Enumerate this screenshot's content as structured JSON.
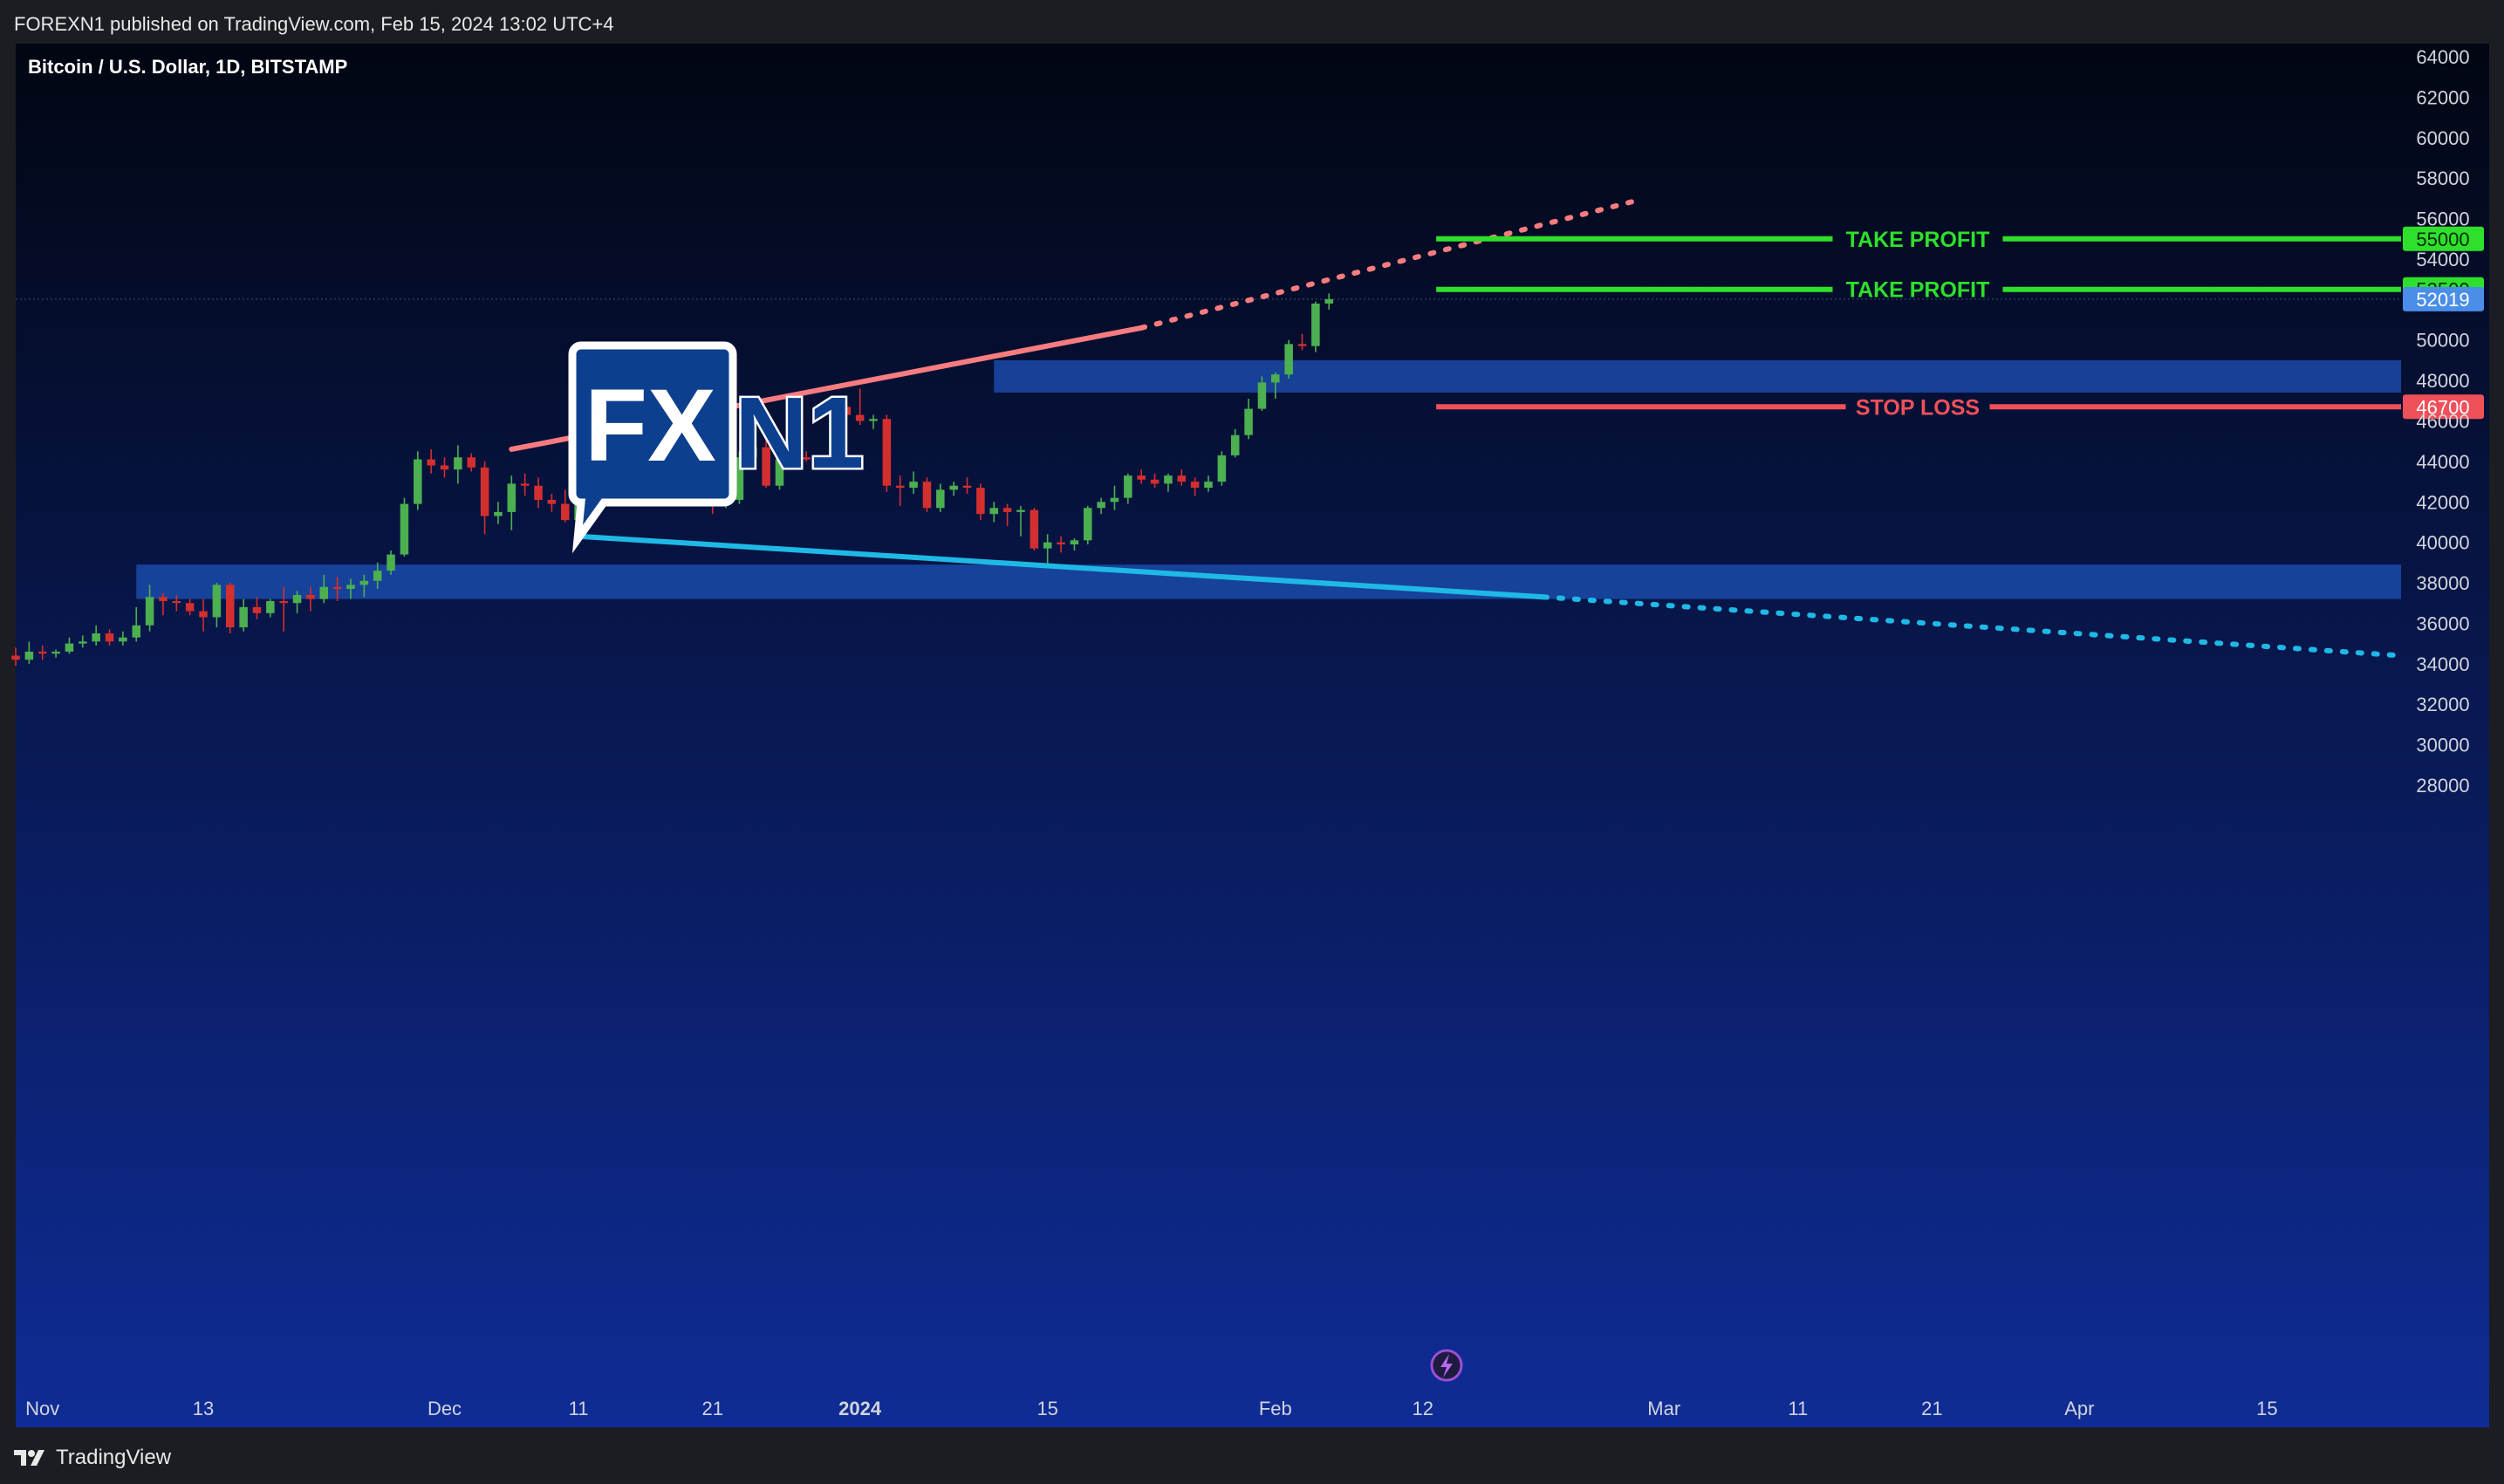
{
  "header": {
    "published": "FOREXN1 published on TradingView.com, Feb 15, 2024 13:02 UTC+4"
  },
  "footer": {
    "brand": "TradingView"
  },
  "logo": {
    "fx": "FX",
    "n1": "N1"
  },
  "colors": {
    "background_top": "#020612",
    "background_bottom": "#0f2c96",
    "up_candle": "#4caf50",
    "down_candle": "#d32f2f",
    "resistance_line": "#f77c80",
    "support_line": "#1fb9e6",
    "take_profit": "#2ee02b",
    "stop_loss": "#f0505a",
    "zone": "#1a4aa8",
    "last_price": "#4a8ee8"
  },
  "icons": {
    "replay": "lightning-icon"
  },
  "chart_data": {
    "type": "candlestick",
    "title": "Bitcoin / U.S. Dollar, 1D, BITSTAMP",
    "x_range": [
      "2023-10-30",
      "2024-04-25"
    ],
    "ylim": [
      27000,
      64500
    ],
    "y_ticks": [
      28000,
      30000,
      32000,
      34000,
      36000,
      38000,
      40000,
      42000,
      44000,
      46000,
      48000,
      50000,
      52000,
      54000,
      56000,
      58000,
      60000,
      62000,
      64000
    ],
    "x_ticks": [
      {
        "date": "2023-11-01",
        "label": "Nov",
        "bold": false
      },
      {
        "date": "2023-11-13",
        "label": "13",
        "bold": false
      },
      {
        "date": "2023-12-01",
        "label": "Dec",
        "bold": false
      },
      {
        "date": "2023-12-11",
        "label": "11",
        "bold": false
      },
      {
        "date": "2023-12-21",
        "label": "21",
        "bold": false
      },
      {
        "date": "2024-01-01",
        "label": "2024",
        "bold": true
      },
      {
        "date": "2024-01-15",
        "label": "15",
        "bold": false
      },
      {
        "date": "2024-02-01",
        "label": "Feb",
        "bold": false
      },
      {
        "date": "2024-02-12",
        "label": "12",
        "bold": false
      },
      {
        "date": "2024-03-01",
        "label": "Mar",
        "bold": false
      },
      {
        "date": "2024-03-11",
        "label": "11",
        "bold": false
      },
      {
        "date": "2024-03-21",
        "label": "21",
        "bold": false
      },
      {
        "date": "2024-04-01",
        "label": "Apr",
        "bold": false
      },
      {
        "date": "2024-04-15",
        "label": "15",
        "bold": false
      }
    ],
    "candles_start": "2023-10-30",
    "candles": [
      [
        34400,
        34800,
        33900,
        34200
      ],
      [
        34200,
        35100,
        34000,
        34600
      ],
      [
        34600,
        34900,
        34200,
        34500
      ],
      [
        34500,
        34700,
        34300,
        34600
      ],
      [
        34600,
        35300,
        34500,
        35000
      ],
      [
        35000,
        35400,
        34800,
        35100
      ],
      [
        35100,
        35900,
        34900,
        35500
      ],
      [
        35500,
        35700,
        34900,
        35100
      ],
      [
        35100,
        35600,
        34900,
        35300
      ],
      [
        35300,
        36800,
        35100,
        35900
      ],
      [
        35900,
        37900,
        35600,
        37300
      ],
      [
        37300,
        37500,
        36400,
        37100
      ],
      [
        37100,
        37400,
        36600,
        37000
      ],
      [
        37000,
        37200,
        36400,
        36600
      ],
      [
        36600,
        37200,
        35600,
        36300
      ],
      [
        36300,
        38000,
        35800,
        37900
      ],
      [
        37900,
        38000,
        35500,
        35800
      ],
      [
        35800,
        37200,
        35600,
        36800
      ],
      [
        36800,
        37300,
        36200,
        36500
      ],
      [
        36500,
        37200,
        36300,
        37100
      ],
      [
        37100,
        37800,
        35600,
        37000
      ],
      [
        37000,
        37600,
        36500,
        37400
      ],
      [
        37400,
        37800,
        36600,
        37200
      ],
      [
        37200,
        38400,
        37000,
        37800
      ],
      [
        37800,
        38300,
        37100,
        37700
      ],
      [
        37700,
        38200,
        37200,
        37900
      ],
      [
        37900,
        38400,
        37300,
        38100
      ],
      [
        38100,
        39000,
        37700,
        38600
      ],
      [
        38600,
        39600,
        38400,
        39400
      ],
      [
        39400,
        42200,
        39300,
        41900
      ],
      [
        41900,
        44500,
        41600,
        44100
      ],
      [
        44100,
        44600,
        43400,
        43800
      ],
      [
        43800,
        44200,
        43200,
        43600
      ],
      [
        43600,
        44800,
        42900,
        44200
      ],
      [
        44200,
        44400,
        43500,
        43700
      ],
      [
        43700,
        44000,
        40400,
        41300
      ],
      [
        41300,
        42000,
        40900,
        41500
      ],
      [
        41500,
        43300,
        40600,
        42900
      ],
      [
        42900,
        43400,
        42300,
        42800
      ],
      [
        42800,
        43200,
        41700,
        42100
      ],
      [
        42100,
        42400,
        41500,
        41900
      ],
      [
        41900,
        42600,
        41000,
        41100
      ],
      [
        41100,
        42400,
        40600,
        42300
      ],
      [
        42300,
        42900,
        41800,
        42700
      ],
      [
        42700,
        44100,
        42400,
        43900
      ],
      [
        43900,
        44200,
        43400,
        44000
      ],
      [
        44000,
        44300,
        43700,
        43900
      ],
      [
        43900,
        44100,
        43300,
        43800
      ],
      [
        43800,
        44000,
        42600,
        43300
      ],
      [
        43300,
        43700,
        42300,
        43600
      ],
      [
        43600,
        44000,
        42100,
        42700
      ],
      [
        42700,
        43300,
        41800,
        42600
      ],
      [
        42600,
        42800,
        41400,
        42000
      ],
      [
        42000,
        42300,
        41700,
        42100
      ],
      [
        42100,
        44500,
        41900,
        44200
      ],
      [
        44200,
        45600,
        43700,
        44700
      ],
      [
        44700,
        45300,
        42700,
        42800
      ],
      [
        42800,
        44400,
        42600,
        44100
      ],
      [
        44100,
        44700,
        43800,
        44200
      ],
      [
        44200,
        44500,
        44000,
        44100
      ],
      [
        44100,
        44300,
        44000,
        44200
      ],
      [
        44200,
        47000,
        44100,
        46700
      ],
      [
        46700,
        47100,
        45900,
        46300
      ],
      [
        46300,
        47600,
        45800,
        46000
      ],
      [
        46000,
        46300,
        45600,
        46100
      ],
      [
        46100,
        46300,
        42500,
        42800
      ],
      [
        42800,
        43300,
        41800,
        42700
      ],
      [
        42700,
        43500,
        42400,
        43000
      ],
      [
        43000,
        43200,
        41500,
        41700
      ],
      [
        41700,
        42900,
        41500,
        42600
      ],
      [
        42600,
        43000,
        42300,
        42800
      ],
      [
        42800,
        43200,
        42400,
        42700
      ],
      [
        42700,
        42900,
        41100,
        41400
      ],
      [
        41400,
        42000,
        41000,
        41700
      ],
      [
        41700,
        41900,
        40800,
        41500
      ],
      [
        41500,
        41800,
        40300,
        41600
      ],
      [
        41600,
        41700,
        39600,
        39700
      ],
      [
        39700,
        40400,
        38800,
        40000
      ],
      [
        40000,
        40300,
        39500,
        39900
      ],
      [
        39900,
        40200,
        39600,
        40100
      ],
      [
        40100,
        41800,
        39900,
        41700
      ],
      [
        41700,
        42200,
        41400,
        42000
      ],
      [
        42000,
        42800,
        41600,
        42200
      ],
      [
        42200,
        43400,
        41900,
        43300
      ],
      [
        43300,
        43600,
        42900,
        43100
      ],
      [
        43100,
        43400,
        42700,
        42900
      ],
      [
        42900,
        43400,
        42500,
        43300
      ],
      [
        43300,
        43600,
        42800,
        43000
      ],
      [
        43000,
        43200,
        42300,
        42700
      ],
      [
        42700,
        43300,
        42500,
        43000
      ],
      [
        43000,
        44500,
        42800,
        44300
      ],
      [
        44300,
        45600,
        44200,
        45300
      ],
      [
        45300,
        47100,
        45100,
        46600
      ],
      [
        46600,
        48200,
        46500,
        47900
      ],
      [
        47900,
        48400,
        47100,
        48300
      ],
      [
        48300,
        50000,
        48100,
        49800
      ],
      [
        49800,
        50300,
        49500,
        49700
      ],
      [
        49700,
        51900,
        49400,
        51800
      ],
      [
        51800,
        52300,
        51500,
        52019
      ]
    ]
  },
  "annotations": {
    "resistance": {
      "start": [
        "2023-12-06",
        44600
      ],
      "solid_end": [
        "2024-01-22",
        50600
      ],
      "end": [
        "2024-02-28",
        56900
      ]
    },
    "support": {
      "start": [
        "2023-12-11",
        40300
      ],
      "solid_end": [
        "2024-02-21",
        37300
      ],
      "end": [
        "2024-04-25",
        34400
      ]
    },
    "zones": [
      {
        "from_date": "2023-11-08",
        "to_date": "2024-04-25",
        "low": 37200,
        "high": 38900
      },
      {
        "from_date": "2024-01-11",
        "to_date": "2024-04-25",
        "low": 47400,
        "high": 49000
      }
    ],
    "levels": [
      {
        "price": 55000,
        "text": "TAKE PROFIT",
        "tag": "55000",
        "kind": "tp"
      },
      {
        "price": 52500,
        "text": "TAKE PROFIT",
        "tag": "52500",
        "kind": "tp"
      },
      {
        "price": 46700,
        "text": "STOP LOSS",
        "tag": "46700",
        "kind": "sl"
      }
    ],
    "levels_start": "2024-02-13",
    "last_price": 52019,
    "last_price_tag": "52019"
  }
}
